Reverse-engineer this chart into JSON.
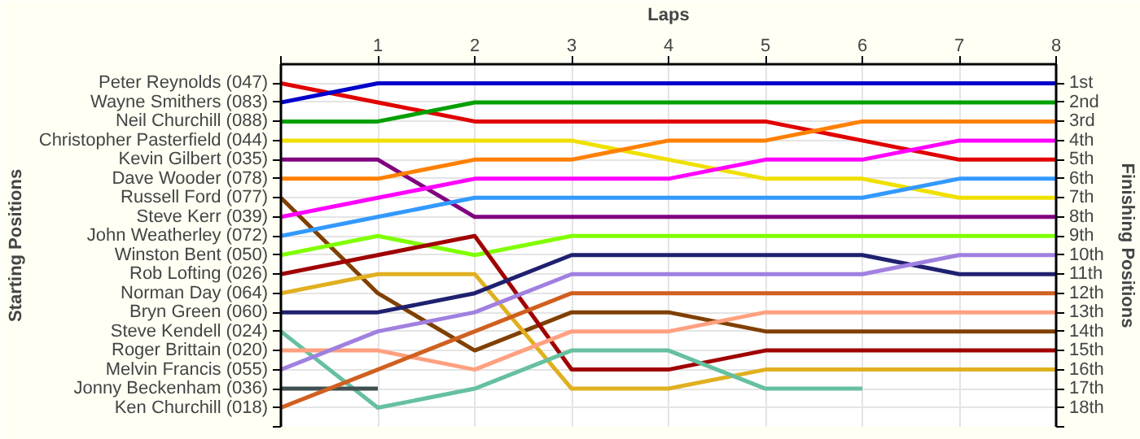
{
  "chart_data": {
    "type": "line",
    "xlabel": "Laps",
    "ylabel": "Finishing Positions",
    "annotations": [
      "Starting Positions"
    ],
    "x": [
      0,
      1,
      2,
      3,
      4,
      5,
      6,
      7,
      8
    ],
    "xlim": [
      0,
      8
    ],
    "xticks": [
      {
        "value": 0,
        "label": null
      },
      1,
      2,
      3,
      4,
      5,
      6,
      7,
      8
    ],
    "ylim": [
      19,
      0
    ],
    "yticks": [
      {
        "value": 1,
        "label": "1st"
      },
      {
        "value": 2,
        "label": "2nd"
      },
      {
        "value": 3,
        "label": "3rd"
      },
      {
        "value": 4,
        "label": "4th"
      },
      {
        "value": 5,
        "label": "5th"
      },
      {
        "value": 6,
        "label": "6th"
      },
      {
        "value": 7,
        "label": "7th"
      },
      {
        "value": 8,
        "label": "8th"
      },
      {
        "value": 9,
        "label": "9th"
      },
      {
        "value": 10,
        "label": "10th"
      },
      {
        "value": 11,
        "label": "11th"
      },
      {
        "value": 12,
        "label": "12th"
      },
      {
        "value": 13,
        "label": "13th"
      },
      {
        "value": 14,
        "label": "14th"
      },
      {
        "value": 15,
        "label": "15th"
      },
      {
        "value": 16,
        "label": "16th"
      },
      {
        "value": 17,
        "label": "17th"
      },
      {
        "value": 18,
        "label": "18th"
      },
      {
        "value": 19,
        "label": null
      }
    ],
    "grid": true,
    "marker": "none",
    "line_style": "solid",
    "series": [
      {
        "name": "Peter Reynolds (047)",
        "color": "#e00000",
        "values": [
          1,
          2,
          3,
          3,
          3,
          3,
          4,
          5,
          5
        ]
      },
      {
        "name": "Wayne Smithers (083)",
        "color": "#0000cc",
        "values": [
          2,
          1,
          1,
          1,
          1,
          1,
          1,
          1,
          1
        ]
      },
      {
        "name": "Neil Churchill (088)",
        "color": "#00a000",
        "values": [
          3,
          3,
          2,
          2,
          2,
          2,
          2,
          2,
          2
        ]
      },
      {
        "name": "Christopher Pasterfield (044)",
        "color": "#f0e000",
        "values": [
          4,
          4,
          4,
          4,
          5,
          6,
          6,
          7,
          7
        ]
      },
      {
        "name": "Kevin Gilbert (035)",
        "color": "#800080",
        "values": [
          5,
          5,
          8,
          8,
          8,
          8,
          8,
          8,
          8
        ]
      },
      {
        "name": "Dave Wooder (078)",
        "color": "#ff8000",
        "values": [
          6,
          6,
          5,
          5,
          4,
          4,
          3,
          3,
          3
        ]
      },
      {
        "name": "Russell Ford (077)",
        "color": "#804000",
        "values": [
          7,
          12,
          15,
          13,
          13,
          14,
          14,
          14,
          14
        ]
      },
      {
        "name": "Steve Kerr (039)",
        "color": "#ff00ff",
        "values": [
          8,
          7,
          6,
          6,
          6,
          5,
          5,
          4,
          4
        ]
      },
      {
        "name": "John Weatherley (072)",
        "color": "#3399ff",
        "values": [
          9,
          8,
          7,
          7,
          7,
          7,
          7,
          6,
          6
        ]
      },
      {
        "name": "Winston Bent (050)",
        "color": "#80ff00",
        "values": [
          10,
          9,
          10,
          9,
          9,
          9,
          9,
          9,
          9
        ]
      },
      {
        "name": "Rob Lofting (026)",
        "color": "#a00000",
        "values": [
          11,
          10,
          9,
          16,
          16,
          15,
          15,
          15,
          15
        ]
      },
      {
        "name": "Norman Day (064)",
        "color": "#e0b020",
        "values": [
          12,
          11,
          11,
          17,
          17,
          16,
          16,
          16,
          16
        ]
      },
      {
        "name": "Bryn Green (060)",
        "color": "#202070",
        "values": [
          13,
          13,
          12,
          10,
          10,
          10,
          10,
          11,
          11
        ]
      },
      {
        "name": "Steve Kendell (024)",
        "color": "#66c0a0",
        "values": [
          14,
          18,
          17,
          15,
          15,
          17,
          17,
          null,
          null
        ]
      },
      {
        "name": "Roger Brittain (020)",
        "color": "#ffa080",
        "values": [
          15,
          15,
          16,
          14,
          14,
          13,
          13,
          13,
          13
        ]
      },
      {
        "name": "Melvin Francis (055)",
        "color": "#a080e0",
        "values": [
          16,
          14,
          13,
          11,
          11,
          11,
          11,
          10,
          10
        ]
      },
      {
        "name": "Jonny Beckenham (036)",
        "color": "#405050",
        "values": [
          17,
          17,
          null,
          null,
          null,
          null,
          null,
          null,
          null
        ]
      },
      {
        "name": "Ken Churchill (018)",
        "color": "#d06020",
        "values": [
          18,
          16,
          14,
          12,
          12,
          12,
          12,
          12,
          12
        ]
      }
    ]
  }
}
